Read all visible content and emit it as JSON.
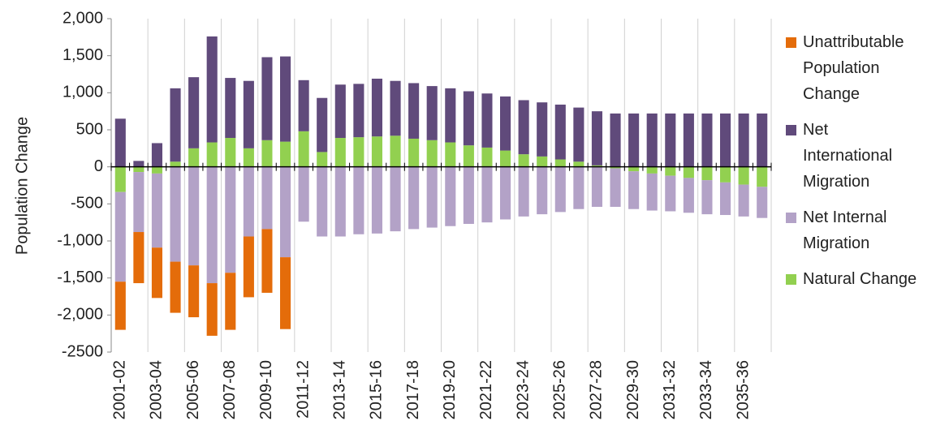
{
  "chart_data": {
    "type": "stacked-bar",
    "y_label": "Population Change",
    "categories": [
      "2001-02",
      null,
      "2003-04",
      null,
      "2005-06",
      null,
      "2007-08",
      null,
      "2009-10",
      null,
      "2011-12",
      null,
      "2013-14",
      null,
      "2015-16",
      null,
      "2017-18",
      null,
      "2019-20",
      null,
      "2021-22",
      null,
      "2023-24",
      null,
      "2025-26",
      null,
      "2027-28",
      null,
      "2029-30",
      null,
      "2031-32",
      null,
      "2033-34",
      null,
      "2035-36",
      null
    ],
    "series": [
      {
        "name": "Natural Change",
        "color": "#92d050",
        "values": [
          -340,
          -70,
          -90,
          70,
          250,
          330,
          390,
          250,
          360,
          340,
          480,
          200,
          390,
          400,
          410,
          420,
          380,
          360,
          330,
          290,
          260,
          220,
          170,
          140,
          100,
          70,
          20,
          -20,
          -60,
          -90,
          -120,
          -150,
          -180,
          -210,
          -240,
          -270
        ]
      },
      {
        "name": "Net Internal Migration",
        "color": "#b3a2c7",
        "values": [
          -1210,
          -810,
          -1000,
          -1280,
          -1330,
          -1570,
          -1430,
          -940,
          -840,
          -1220,
          -740,
          -940,
          -940,
          -910,
          -900,
          -870,
          -840,
          -820,
          -800,
          -770,
          -750,
          -710,
          -670,
          -640,
          -610,
          -570,
          -540,
          -520,
          -510,
          -500,
          -480,
          -470,
          -460,
          -440,
          -430,
          -420
        ]
      },
      {
        "name": "Net International Migration",
        "color": "#604a7b",
        "values": [
          650,
          80,
          320,
          990,
          960,
          1430,
          810,
          910,
          1120,
          1150,
          690,
          730,
          720,
          720,
          780,
          740,
          750,
          730,
          730,
          730,
          730,
          730,
          730,
          730,
          740,
          730,
          730,
          720,
          720,
          720,
          720,
          720,
          720,
          720,
          720,
          720
        ]
      },
      {
        "name": "Unattributable Population Change",
        "color": "#e46c0a",
        "values": [
          -650,
          -690,
          -680,
          -690,
          -700,
          -710,
          -770,
          -820,
          -860,
          -970,
          null,
          null,
          null,
          null,
          null,
          null,
          null,
          null,
          null,
          null,
          null,
          null,
          null,
          null,
          null,
          null,
          null,
          null,
          null,
          null,
          null,
          null,
          null,
          null,
          null,
          null
        ]
      }
    ],
    "ylim": [
      -2500,
      2000
    ],
    "yticks": [
      -2500,
      {
        "value": -2000,
        "label": "-2,000"
      },
      {
        "value": -1500,
        "label": "-1,500"
      },
      {
        "value": -1000,
        "label": "-1,000"
      },
      -500,
      0,
      500,
      {
        "value": 1000,
        "label": "1,000"
      },
      {
        "value": 1500,
        "label": "1,500"
      },
      {
        "value": 2000,
        "label": "2,000"
      }
    ],
    "legend_position": "right",
    "grid": "x"
  }
}
